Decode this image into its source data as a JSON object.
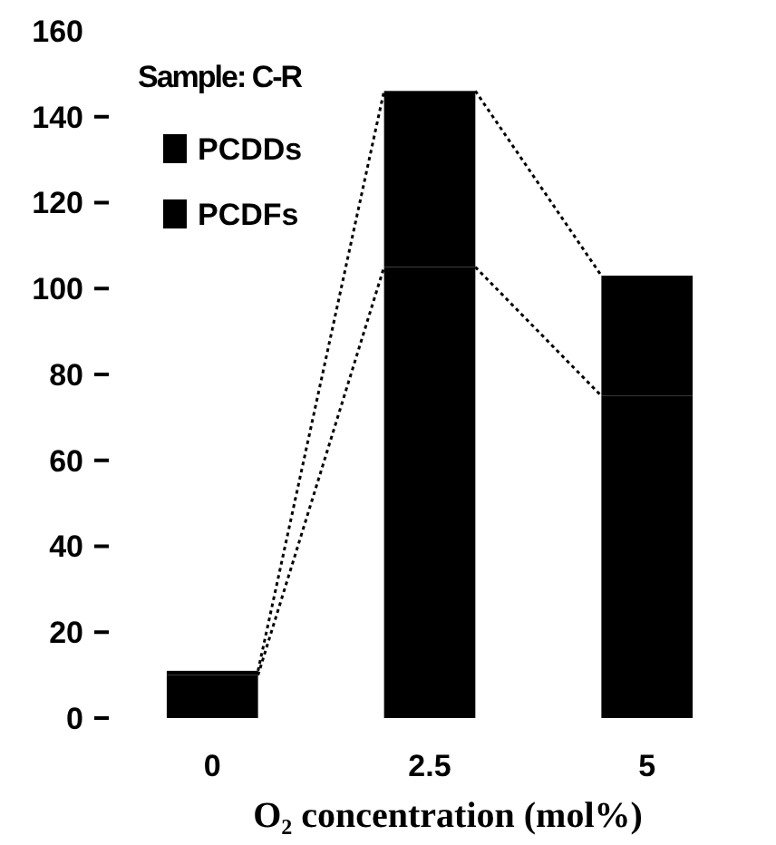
{
  "chart_data": {
    "type": "bar",
    "title": "Sample: C-R",
    "xlabel": "O₂ concentration (mol%)",
    "categories": [
      "0",
      "2.5",
      "5"
    ],
    "stacked": true,
    "series": [
      {
        "name": "PCDFs",
        "color": "#000000",
        "values": [
          10,
          105,
          75
        ]
      },
      {
        "name": "PCDDs",
        "color": "#000000",
        "values": [
          1,
          41,
          28
        ]
      }
    ],
    "ylim": [
      0,
      160
    ],
    "yticks": [
      0,
      20,
      40,
      60,
      80,
      100,
      120,
      140,
      160
    ],
    "legend": "top left",
    "grid": false
  }
}
